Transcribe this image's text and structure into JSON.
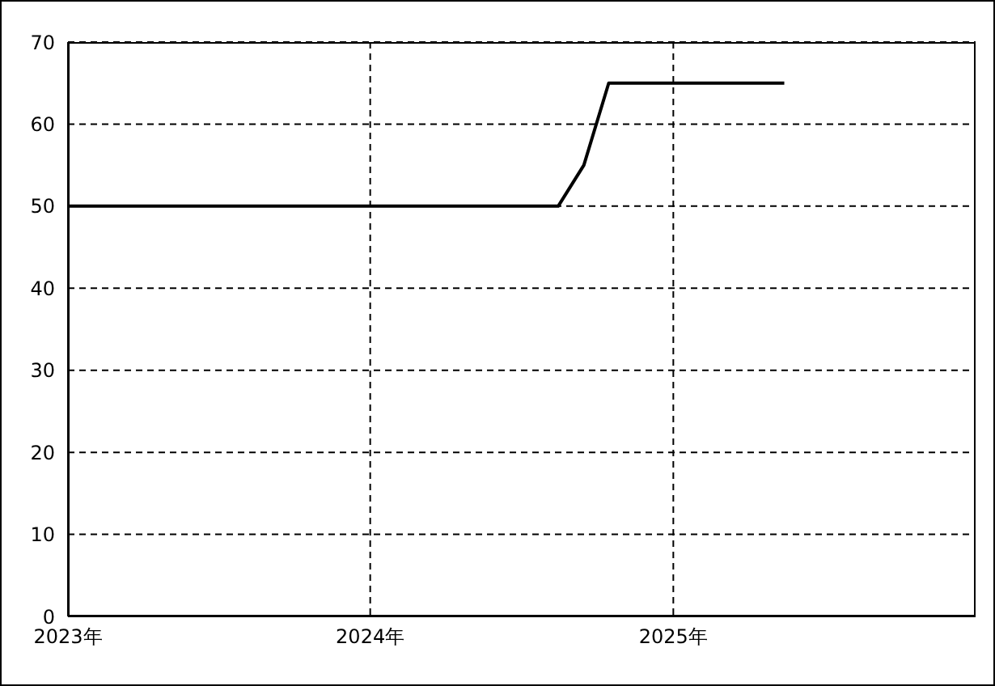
{
  "chart_data": {
    "type": "line",
    "x": [
      "2023-01-01",
      "2024-08-15",
      "2024-09-15",
      "2024-10-15",
      "2025-05-15"
    ],
    "series": [
      {
        "color": "#000000",
        "values": [
          50,
          50,
          55,
          65,
          65
        ]
      }
    ],
    "xlim": [
      "2023-01-01",
      "2026-01-01"
    ],
    "xticks": [
      {
        "value": "2023-01-01",
        "label": "2023年"
      },
      {
        "value": "2024-01-01",
        "label": "2024年"
      },
      {
        "value": "2025-01-01",
        "label": "2025年"
      }
    ],
    "ylim": [
      0,
      70
    ],
    "yticks": [
      0,
      10,
      20,
      30,
      40,
      50,
      60,
      70
    ],
    "grid": true,
    "marker": "none",
    "line_style": "solid"
  }
}
